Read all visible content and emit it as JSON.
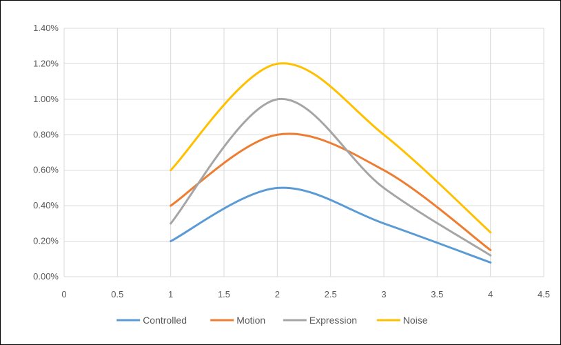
{
  "chart_data": {
    "type": "line",
    "title": "",
    "xlabel": "",
    "ylabel": "",
    "xlim": [
      0,
      4.5
    ],
    "ylim": [
      0,
      0.014
    ],
    "x_ticks": [
      "0",
      "0.5",
      "1",
      "1.5",
      "2",
      "2.5",
      "3",
      "3.5",
      "4",
      "4.5"
    ],
    "y_ticks": [
      "0.00%",
      "0.20%",
      "0.40%",
      "0.60%",
      "0.80%",
      "1.00%",
      "1.20%",
      "1.40%"
    ],
    "grid": true,
    "smooth": true,
    "legend_position": "bottom",
    "x": [
      1,
      2,
      3,
      4
    ],
    "series": [
      {
        "name": "Controlled",
        "color": "#5B9BD5",
        "values": [
          0.002,
          0.005,
          0.003,
          0.0008
        ]
      },
      {
        "name": "Motion",
        "color": "#ED7D31",
        "values": [
          0.004,
          0.008,
          0.006,
          0.0015
        ]
      },
      {
        "name": "Expression",
        "color": "#A5A5A5",
        "values": [
          0.003,
          0.01,
          0.005,
          0.0012
        ]
      },
      {
        "name": "Noise",
        "color": "#FFC000",
        "values": [
          0.006,
          0.012,
          0.008,
          0.0025
        ]
      }
    ]
  }
}
